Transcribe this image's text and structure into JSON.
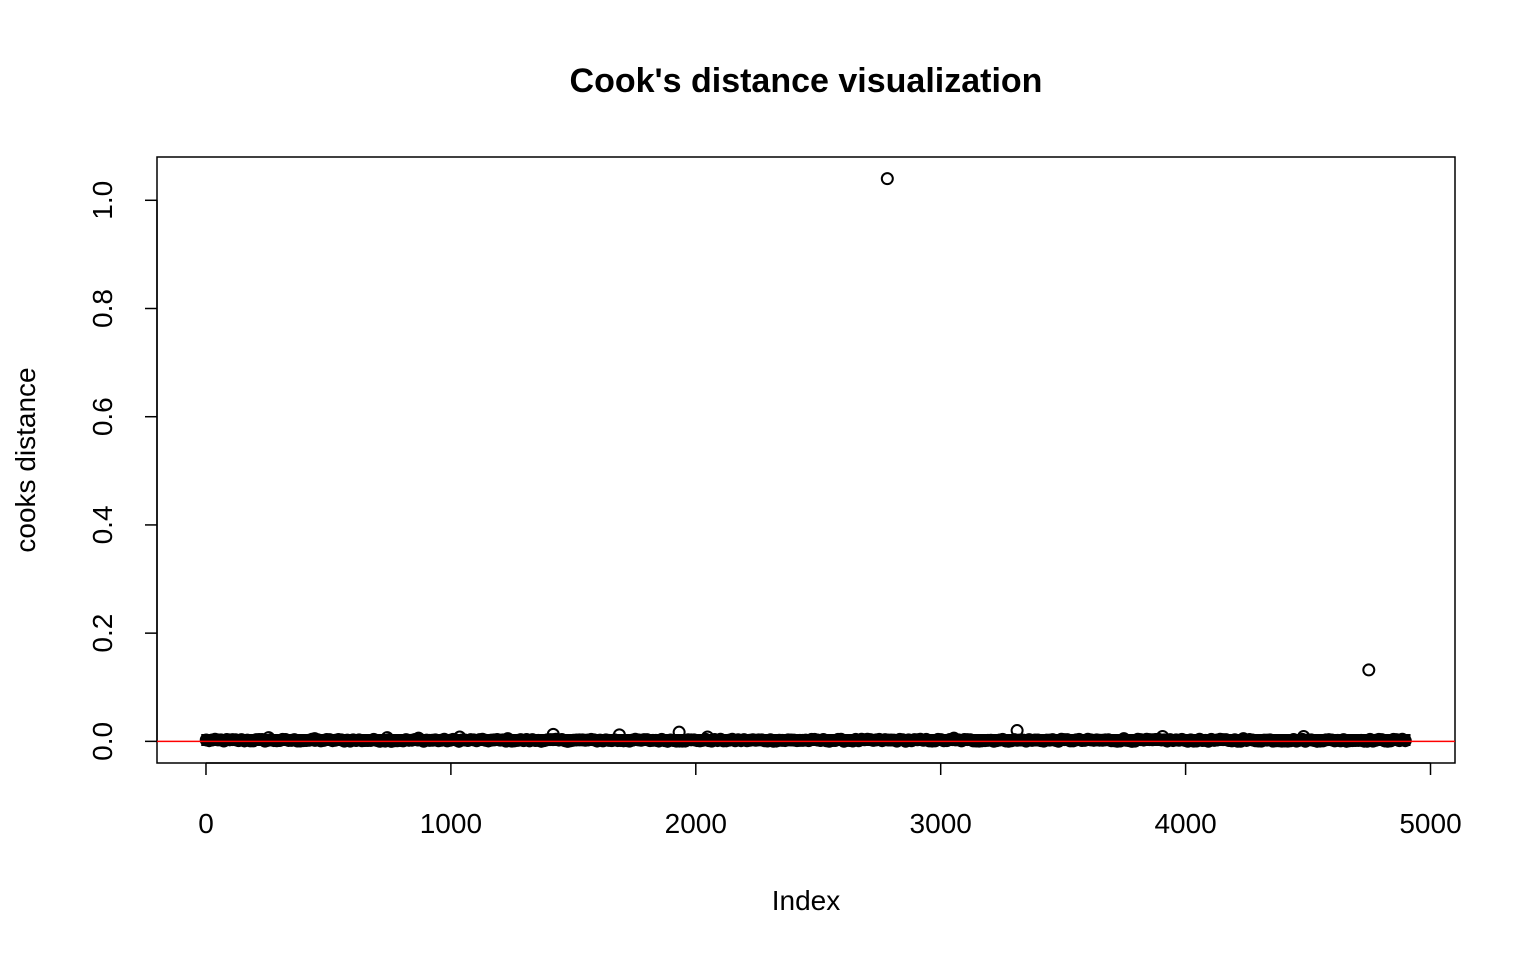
{
  "chart_data": {
    "type": "scatter",
    "title": "Cook's distance visualization",
    "xlabel": "Index",
    "ylabel": "cooks distance",
    "xlim": [
      -200,
      5100
    ],
    "ylim": [
      -0.04,
      1.08
    ],
    "x_ticks": [
      0,
      1000,
      2000,
      3000,
      4000,
      5000
    ],
    "x_tick_labels": [
      "0",
      "1000",
      "2000",
      "3000",
      "4000",
      "5000"
    ],
    "y_ticks": [
      0.0,
      0.2,
      0.4,
      0.6,
      0.8,
      1.0
    ],
    "y_tick_labels": [
      "0.0",
      "0.2",
      "0.4",
      "0.6",
      "0.8",
      "1.0"
    ],
    "grid": false,
    "legend": "none",
    "reference_line": {
      "y": 0,
      "color": "#ff0000"
    },
    "point_color": "#000000",
    "series": [
      {
        "n_points": 4898,
        "baseline_value": 0.0,
        "outliers": [
          {
            "x": 2782,
            "y": 1.04
          },
          {
            "x": 4748,
            "y": 0.132
          },
          {
            "x": 3312,
            "y": 0.02
          },
          {
            "x": 1932,
            "y": 0.017
          },
          {
            "x": 1418,
            "y": 0.013
          },
          {
            "x": 1688,
            "y": 0.012
          },
          {
            "x": 3906,
            "y": 0.009
          },
          {
            "x": 4482,
            "y": 0.009
          },
          {
            "x": 2048,
            "y": 0.008
          },
          {
            "x": 1036,
            "y": 0.008
          },
          {
            "x": 740,
            "y": 0.007
          },
          {
            "x": 256,
            "y": 0.007
          },
          {
            "x": 868,
            "y": 0.006
          },
          {
            "x": 3054,
            "y": 0.006
          },
          {
            "x": 1232,
            "y": 0.005
          },
          {
            "x": 444,
            "y": 0.005
          },
          {
            "x": 3748,
            "y": 0.005
          },
          {
            "x": 4236,
            "y": 0.005
          }
        ]
      }
    ]
  }
}
